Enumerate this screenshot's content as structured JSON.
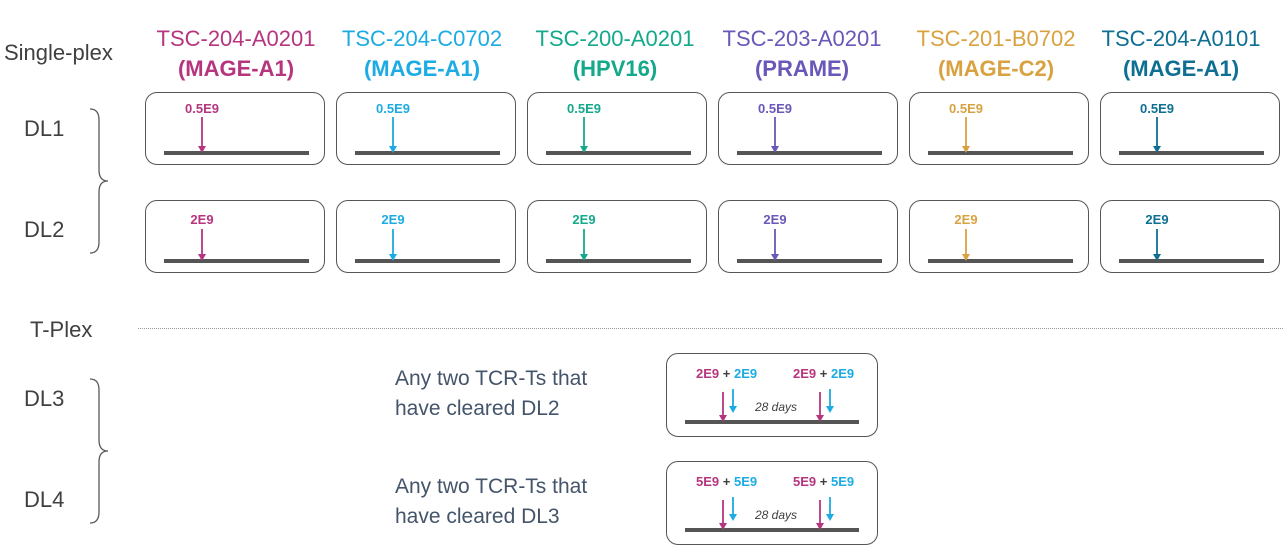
{
  "sections": {
    "single_plex": "Single-plex",
    "t_plex": "T-Plex"
  },
  "dose_levels": [
    "DL1",
    "DL2",
    "DL3",
    "DL4"
  ],
  "products": [
    {
      "id": "TSC-204-A0201",
      "target": "(MAGE-A1)",
      "color": "#b5357f"
    },
    {
      "id": "TSC-204-C0702",
      "target": "(MAGE-A1)",
      "color": "#1cabe2"
    },
    {
      "id": "TSC-200-A0201",
      "target": "(HPV16)",
      "color": "#14a98b"
    },
    {
      "id": "TSC-203-A0201",
      "target": "(PRAME)",
      "color": "#6a57b7"
    },
    {
      "id": "TSC-201-B0702",
      "target": "(MAGE-C2)",
      "color": "#d9a241"
    },
    {
      "id": "TSC-204-A0101",
      "target": "(MAGE-A1)",
      "color": "#0f6f92"
    }
  ],
  "single_plex_doses": {
    "DL1": "0.5E9",
    "DL2": "2E9"
  },
  "t_plex": {
    "DL3": {
      "note_line1": "Any two TCR-Ts that",
      "note_line2": "have cleared DL2",
      "dose_a": "2E9",
      "plus": "+",
      "dose_b": "2E9",
      "interval": "28 days"
    },
    "DL4": {
      "note_line1": "Any two TCR-Ts that",
      "note_line2": "have cleared DL3",
      "dose_a": "5E9",
      "plus": "+",
      "dose_b": "5E9",
      "interval": "28 days"
    }
  },
  "colors": {
    "pair_a": "#b5357f",
    "pair_b": "#1cabe2",
    "timeline": "#555555",
    "label_text": "#404040",
    "note_text": "#44546a"
  }
}
